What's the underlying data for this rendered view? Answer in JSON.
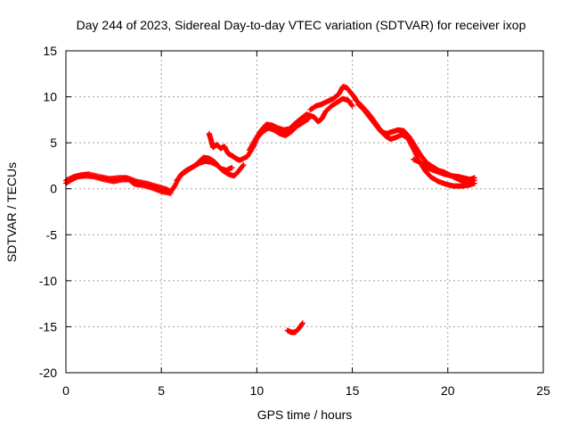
{
  "chart_data": {
    "type": "scatter",
    "title": "Day 244 of 2023, Sidereal Day-to-day VTEC variation (SDTVAR) for receiver ixop",
    "xlabel": "GPS time / hours",
    "ylabel": "SDTVAR / TECUs",
    "xlim": [
      0,
      25
    ],
    "ylim": [
      -20,
      15
    ],
    "xticks": [
      0,
      5,
      10,
      15,
      20,
      25
    ],
    "yticks": [
      15,
      10,
      5,
      0,
      -5,
      -10,
      -15,
      -20
    ],
    "grid": true,
    "marker": "+",
    "series": [
      {
        "name": "SDTVAR",
        "color": "#ff0000",
        "points": [
          [
            0.0,
            0.6
          ],
          [
            0.3,
            1.0
          ],
          [
            0.6,
            1.3
          ],
          [
            1.0,
            1.4
          ],
          [
            1.5,
            1.3
          ],
          [
            2.0,
            1.0
          ],
          [
            2.5,
            0.8
          ],
          [
            3.0,
            1.0
          ],
          [
            3.3,
            1.0
          ],
          [
            3.6,
            0.5
          ],
          [
            4.0,
            0.4
          ],
          [
            4.5,
            0.1
          ],
          [
            5.0,
            -0.3
          ],
          [
            5.5,
            -0.5
          ],
          [
            0.0,
            0.9
          ],
          [
            0.4,
            1.3
          ],
          [
            0.8,
            1.5
          ],
          [
            1.2,
            1.6
          ],
          [
            1.8,
            1.3
          ],
          [
            2.3,
            1.1
          ],
          [
            2.8,
            1.2
          ],
          [
            3.2,
            1.2
          ],
          [
            3.7,
            0.8
          ],
          [
            4.2,
            0.6
          ],
          [
            4.7,
            0.3
          ],
          [
            5.2,
            0.0
          ],
          [
            5.5,
            -0.3
          ],
          [
            5.7,
            0.3
          ],
          [
            6.0,
            1.5
          ],
          [
            6.3,
            2.0
          ],
          [
            6.6,
            2.3
          ],
          [
            7.0,
            2.8
          ],
          [
            7.3,
            3.0
          ],
          [
            7.6,
            2.9
          ],
          [
            7.9,
            2.6
          ],
          [
            8.2,
            2.0
          ],
          [
            8.5,
            1.6
          ],
          [
            8.8,
            1.4
          ],
          [
            9.0,
            1.8
          ],
          [
            9.3,
            2.6
          ],
          [
            5.8,
            0.9
          ],
          [
            6.1,
            1.6
          ],
          [
            6.5,
            2.2
          ],
          [
            6.8,
            2.6
          ],
          [
            7.2,
            3.4
          ],
          [
            7.5,
            3.3
          ],
          [
            7.8,
            2.9
          ],
          [
            8.1,
            2.2
          ],
          [
            8.4,
            2.0
          ],
          [
            8.7,
            2.3
          ],
          [
            7.5,
            6.0
          ],
          [
            7.6,
            5.3
          ],
          [
            7.7,
            4.5
          ],
          [
            7.9,
            4.8
          ],
          [
            8.1,
            4.4
          ],
          [
            8.3,
            4.6
          ],
          [
            8.5,
            3.8
          ],
          [
            8.7,
            3.6
          ],
          [
            8.9,
            3.3
          ],
          [
            9.1,
            3.1
          ],
          [
            9.5,
            3.5
          ],
          [
            9.8,
            4.5
          ],
          [
            10.0,
            5.5
          ],
          [
            10.3,
            6.2
          ],
          [
            10.6,
            6.6
          ],
          [
            10.9,
            6.4
          ],
          [
            11.2,
            6.0
          ],
          [
            11.5,
            5.8
          ],
          [
            11.8,
            6.2
          ],
          [
            12.1,
            6.8
          ],
          [
            12.4,
            7.2
          ],
          [
            12.7,
            7.6
          ],
          [
            9.6,
            4.2
          ],
          [
            9.9,
            5.3
          ],
          [
            10.2,
            6.3
          ],
          [
            10.5,
            7.0
          ],
          [
            10.8,
            6.9
          ],
          [
            11.1,
            6.6
          ],
          [
            11.4,
            6.4
          ],
          [
            11.7,
            6.5
          ],
          [
            12.0,
            7.1
          ],
          [
            12.3,
            7.6
          ],
          [
            12.6,
            8.1
          ],
          [
            13.0,
            7.8
          ],
          [
            13.2,
            7.3
          ],
          [
            13.4,
            7.6
          ],
          [
            13.6,
            8.4
          ],
          [
            13.9,
            9.0
          ],
          [
            14.2,
            9.4
          ],
          [
            14.5,
            9.8
          ],
          [
            14.8,
            9.6
          ],
          [
            15.0,
            9.0
          ],
          [
            12.8,
            8.6
          ],
          [
            13.1,
            9.0
          ],
          [
            13.4,
            9.2
          ],
          [
            13.7,
            9.5
          ],
          [
            14.0,
            9.8
          ],
          [
            14.3,
            10.3
          ],
          [
            14.5,
            11.1
          ],
          [
            14.7,
            11.0
          ],
          [
            14.9,
            10.5
          ],
          [
            15.1,
            10.0
          ],
          [
            15.2,
            9.6
          ],
          [
            15.5,
            9.0
          ],
          [
            15.8,
            8.3
          ],
          [
            16.1,
            7.5
          ],
          [
            16.4,
            6.6
          ],
          [
            16.7,
            5.8
          ],
          [
            17.0,
            5.4
          ],
          [
            17.3,
            5.6
          ],
          [
            17.6,
            5.9
          ],
          [
            17.9,
            5.5
          ],
          [
            18.2,
            4.3
          ],
          [
            18.5,
            3.0
          ],
          [
            18.8,
            2.0
          ],
          [
            19.1,
            1.3
          ],
          [
            19.5,
            0.8
          ],
          [
            19.9,
            0.5
          ],
          [
            20.3,
            0.3
          ],
          [
            20.7,
            0.3
          ],
          [
            21.1,
            0.4
          ],
          [
            21.4,
            0.6
          ],
          [
            15.3,
            9.2
          ],
          [
            15.6,
            8.6
          ],
          [
            15.9,
            7.8
          ],
          [
            16.2,
            7.0
          ],
          [
            16.5,
            6.2
          ],
          [
            16.8,
            6.0
          ],
          [
            17.1,
            6.2
          ],
          [
            17.4,
            6.4
          ],
          [
            17.7,
            6.3
          ],
          [
            18.0,
            5.6
          ],
          [
            18.3,
            4.6
          ],
          [
            18.6,
            3.6
          ],
          [
            18.9,
            2.8
          ],
          [
            19.2,
            2.4
          ],
          [
            19.5,
            2.0
          ],
          [
            19.8,
            1.8
          ],
          [
            20.1,
            1.5
          ],
          [
            20.4,
            1.2
          ],
          [
            20.7,
            0.9
          ],
          [
            21.0,
            0.9
          ],
          [
            21.4,
            1.2
          ],
          [
            18.2,
            3.2
          ],
          [
            18.6,
            2.8
          ],
          [
            19.0,
            2.2
          ],
          [
            19.4,
            1.9
          ],
          [
            19.8,
            1.6
          ],
          [
            20.2,
            1.4
          ],
          [
            20.6,
            1.3
          ],
          [
            21.0,
            1.1
          ],
          [
            21.4,
            0.9
          ],
          [
            11.6,
            -15.4
          ],
          [
            11.8,
            -15.6
          ],
          [
            12.0,
            -15.6
          ],
          [
            12.2,
            -15.2
          ],
          [
            12.4,
            -14.6
          ]
        ]
      }
    ]
  }
}
